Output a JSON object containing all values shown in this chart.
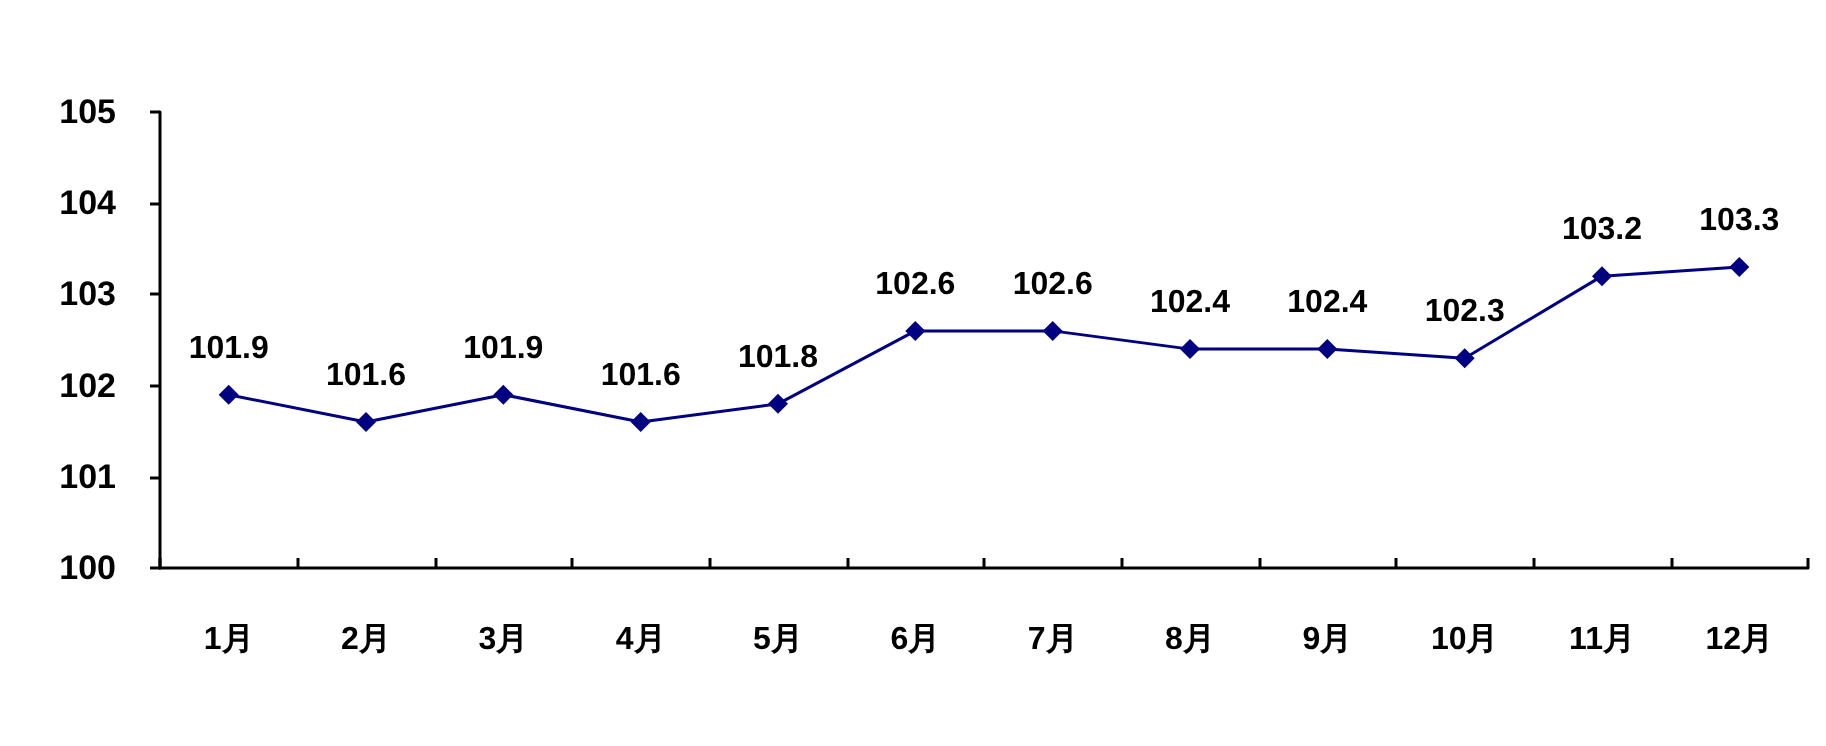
{
  "chart_data": {
    "type": "line",
    "categories": [
      "1月",
      "2月",
      "3月",
      "4月",
      "5月",
      "6月",
      "7月",
      "8月",
      "9月",
      "10月",
      "11月",
      "12月"
    ],
    "series": [
      {
        "color": "#000080",
        "values": [
          101.9,
          101.6,
          101.9,
          101.6,
          101.8,
          102.6,
          102.6,
          102.4,
          102.4,
          102.3,
          103.2,
          103.3
        ]
      }
    ],
    "ylim": [
      100,
      105
    ],
    "yticks": [
      100,
      101,
      102,
      103,
      104,
      105
    ],
    "grid": false,
    "marker": "diamond",
    "line_style": "solid",
    "data_labels": true
  }
}
